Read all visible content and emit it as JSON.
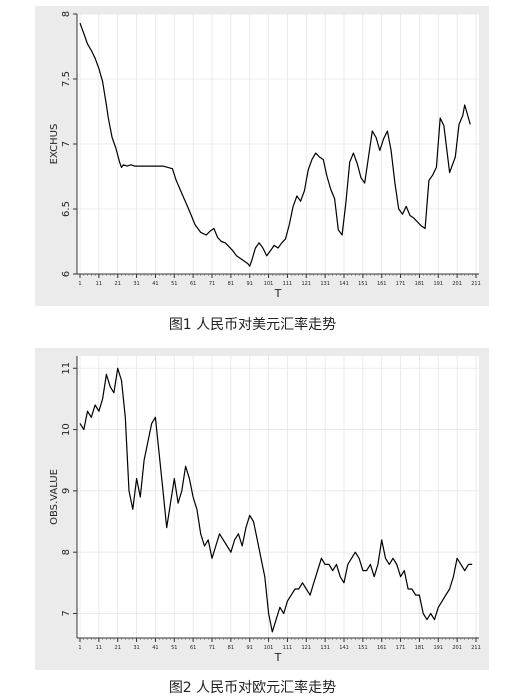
{
  "figures": [
    {
      "caption": "图1  人民币对美元汇率走势"
    },
    {
      "caption": "图2  人民币对欧元汇率走势"
    }
  ],
  "chart_data": [
    {
      "type": "line",
      "xlabel": "T",
      "ylabel": "EXCHUS",
      "xlim": [
        1,
        211
      ],
      "ylim": [
        6,
        8
      ],
      "yticks": [
        6,
        6.5,
        7,
        7.5,
        8
      ],
      "ytick_labels": [
        "6",
        "6.5",
        "7",
        "7.5",
        "8"
      ],
      "xticks": [
        1,
        11,
        21,
        31,
        41,
        51,
        61,
        71,
        81,
        91,
        101,
        111,
        121,
        131,
        141,
        151,
        161,
        171,
        181,
        191,
        201,
        211
      ],
      "xtick_labels": [
        "1",
        "11",
        "21",
        "31",
        "41",
        "51",
        "61",
        "71",
        "81",
        "91",
        "101",
        "111",
        "121",
        "131",
        "141",
        "151",
        "161",
        "171",
        "181",
        "191",
        "201",
        "211"
      ],
      "grid": true,
      "color": "#000000",
      "x": [
        1,
        3,
        5,
        7,
        9,
        11,
        13,
        15,
        16,
        18,
        20,
        22,
        23,
        24,
        26,
        28,
        30,
        32,
        35,
        38,
        40,
        45,
        50,
        52,
        55,
        58,
        60,
        62,
        65,
        68,
        70,
        72,
        74,
        76,
        78,
        80,
        82,
        84,
        86,
        88,
        90,
        91,
        92,
        94,
        96,
        98,
        100,
        102,
        104,
        106,
        108,
        110,
        112,
        114,
        116,
        118,
        120,
        122,
        124,
        126,
        128,
        130,
        132,
        134,
        136,
        138,
        140,
        142,
        144,
        146,
        148,
        150,
        152,
        154,
        156,
        158,
        160,
        162,
        164,
        166,
        168,
        170,
        172,
        174,
        176,
        178,
        180,
        182,
        184,
        186,
        188,
        190,
        192,
        194,
        196,
        197,
        198,
        200,
        202,
        204,
        205,
        206,
        208
      ],
      "values": [
        7.93,
        7.85,
        7.77,
        7.72,
        7.66,
        7.58,
        7.48,
        7.3,
        7.2,
        7.05,
        6.97,
        6.86,
        6.82,
        6.84,
        6.83,
        6.84,
        6.83,
        6.83,
        6.83,
        6.83,
        6.83,
        6.83,
        6.81,
        6.72,
        6.62,
        6.52,
        6.45,
        6.38,
        6.32,
        6.3,
        6.33,
        6.35,
        6.28,
        6.25,
        6.24,
        6.21,
        6.18,
        6.14,
        6.12,
        6.1,
        6.08,
        6.06,
        6.1,
        6.2,
        6.24,
        6.2,
        6.14,
        6.18,
        6.22,
        6.2,
        6.24,
        6.27,
        6.38,
        6.52,
        6.6,
        6.56,
        6.64,
        6.8,
        6.88,
        6.93,
        6.9,
        6.88,
        6.75,
        6.65,
        6.58,
        6.34,
        6.3,
        6.55,
        6.86,
        6.93,
        6.85,
        6.74,
        6.7,
        6.9,
        7.1,
        7.05,
        6.95,
        7.04,
        7.1,
        6.95,
        6.7,
        6.5,
        6.46,
        6.52,
        6.45,
        6.43,
        6.4,
        6.37,
        6.35,
        6.72,
        6.76,
        6.82,
        7.2,
        7.14,
        6.9,
        6.78,
        6.82,
        6.9,
        7.15,
        7.22,
        7.3,
        7.25,
        7.15
      ]
    },
    {
      "type": "line",
      "xlabel": "T",
      "ylabel": "OBS.VALUE",
      "xlim": [
        1,
        211
      ],
      "ylim": [
        6.6,
        11.2
      ],
      "yticks": [
        7,
        8,
        9,
        10,
        11
      ],
      "ytick_labels": [
        "7",
        "8",
        "9",
        "10",
        "11"
      ],
      "xticks": [
        1,
        11,
        21,
        31,
        41,
        51,
        61,
        71,
        81,
        91,
        101,
        111,
        121,
        131,
        141,
        151,
        161,
        171,
        181,
        191,
        201,
        211
      ],
      "xtick_labels": [
        "1",
        "11",
        "21",
        "31",
        "41",
        "51",
        "61",
        "71",
        "81",
        "91",
        "101",
        "111",
        "121",
        "131",
        "141",
        "151",
        "161",
        "171",
        "181",
        "191",
        "201",
        "211"
      ],
      "grid": true,
      "color": "#000000",
      "x": [
        1,
        3,
        5,
        7,
        9,
        11,
        13,
        15,
        17,
        19,
        21,
        23,
        25,
        27,
        29,
        31,
        33,
        35,
        37,
        39,
        41,
        43,
        45,
        47,
        49,
        51,
        53,
        55,
        57,
        59,
        61,
        63,
        65,
        67,
        69,
        71,
        73,
        75,
        77,
        79,
        81,
        83,
        85,
        87,
        89,
        91,
        93,
        95,
        97,
        99,
        101,
        103,
        105,
        107,
        109,
        111,
        113,
        115,
        117,
        119,
        121,
        123,
        125,
        127,
        129,
        131,
        133,
        135,
        137,
        139,
        141,
        143,
        145,
        147,
        149,
        151,
        153,
        155,
        157,
        159,
        161,
        163,
        165,
        167,
        169,
        171,
        173,
        175,
        177,
        179,
        181,
        183,
        185,
        187,
        189,
        191,
        193,
        195,
        197,
        199,
        201,
        203,
        205,
        207,
        209
      ],
      "values": [
        10.1,
        10.0,
        10.3,
        10.2,
        10.4,
        10.3,
        10.5,
        10.9,
        10.7,
        10.6,
        11.0,
        10.8,
        10.2,
        9.0,
        8.7,
        9.2,
        8.9,
        9.5,
        9.8,
        10.1,
        10.2,
        9.6,
        9.0,
        8.4,
        8.8,
        9.2,
        8.8,
        9.0,
        9.4,
        9.2,
        8.9,
        8.7,
        8.3,
        8.1,
        8.2,
        7.9,
        8.1,
        8.3,
        8.2,
        8.1,
        8.0,
        8.2,
        8.3,
        8.1,
        8.4,
        8.6,
        8.5,
        8.2,
        7.9,
        7.6,
        7.0,
        6.7,
        6.9,
        7.1,
        7.0,
        7.2,
        7.3,
        7.4,
        7.4,
        7.5,
        7.4,
        7.3,
        7.5,
        7.7,
        7.9,
        7.8,
        7.8,
        7.7,
        7.8,
        7.6,
        7.5,
        7.8,
        7.9,
        8.0,
        7.9,
        7.7,
        7.7,
        7.8,
        7.6,
        7.8,
        8.2,
        7.9,
        7.8,
        7.9,
        7.8,
        7.6,
        7.7,
        7.4,
        7.4,
        7.3,
        7.3,
        7.0,
        6.9,
        7.0,
        6.9,
        7.1,
        7.2,
        7.3,
        7.4,
        7.6,
        7.9,
        7.8,
        7.7,
        7.8,
        7.8
      ]
    }
  ]
}
